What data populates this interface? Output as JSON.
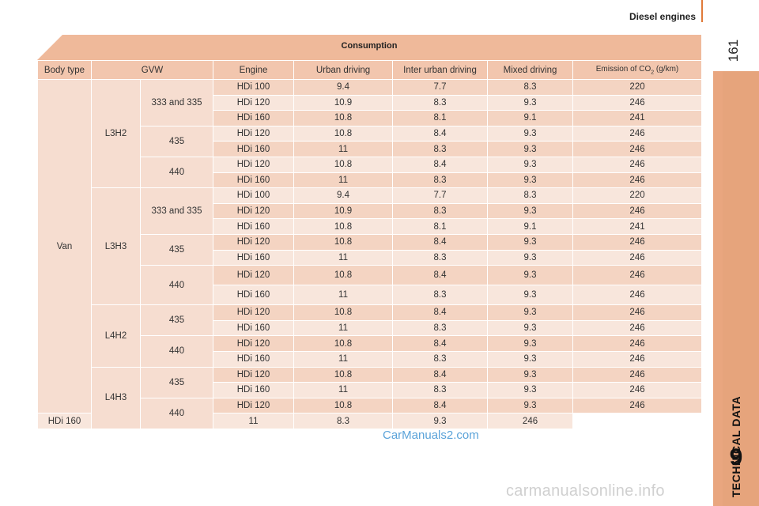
{
  "header": {
    "section_title": "Diesel engines",
    "page_number": "161"
  },
  "side_tab": {
    "chapter_title": "TECHNICAL DATA",
    "chapter_number": "9"
  },
  "table": {
    "caption": "Consumption",
    "columns": [
      "Body type",
      "GVW",
      "Engine",
      "Urban driving",
      "Inter urban driving",
      "Mixed driving"
    ],
    "co2_header": {
      "prefix": "Emission of CO",
      "subscript": "2",
      "suffix": " (g/km)"
    },
    "body_type": "Van",
    "groups": [
      {
        "name": "L3H2",
        "gvws": [
          {
            "gvw": "333 and 335",
            "rows": [
              {
                "engine": "HDi 100",
                "urban": "9.4",
                "inter_urban": "7.7",
                "mixed": "8.3",
                "co2": "220"
              },
              {
                "engine": "HDi 120",
                "urban": "10.9",
                "inter_urban": "8.3",
                "mixed": "9.3",
                "co2": "246"
              },
              {
                "engine": "HDi 160",
                "urban": "10.8",
                "inter_urban": "8.1",
                "mixed": "9.1",
                "co2": "241"
              }
            ]
          },
          {
            "gvw": "435",
            "rows": [
              {
                "engine": "HDi 120",
                "urban": "10.8",
                "inter_urban": "8.4",
                "mixed": "9.3",
                "co2": "246"
              },
              {
                "engine": "HDi 160",
                "urban": "11",
                "inter_urban": "8.3",
                "mixed": "9.3",
                "co2": "246"
              }
            ]
          },
          {
            "gvw": "440",
            "rows": [
              {
                "engine": "HDi 120",
                "urban": "10.8",
                "inter_urban": "8.4",
                "mixed": "9.3",
                "co2": "246"
              },
              {
                "engine": "HDi 160",
                "urban": "11",
                "inter_urban": "8.3",
                "mixed": "9.3",
                "co2": "246"
              }
            ]
          }
        ]
      },
      {
        "name": "L3H3",
        "gvws": [
          {
            "gvw": "333 and 335",
            "rows": [
              {
                "engine": "HDi 100",
                "urban": "9.4",
                "inter_urban": "7.7",
                "mixed": "8.3",
                "co2": "220"
              },
              {
                "engine": "HDi 120",
                "urban": "10.9",
                "inter_urban": "8.3",
                "mixed": "9.3",
                "co2": "246"
              },
              {
                "engine": "HDi 160",
                "urban": "10.8",
                "inter_urban": "8.1",
                "mixed": "9.1",
                "co2": "241"
              }
            ]
          },
          {
            "gvw": "435",
            "rows": [
              {
                "engine": "HDi 120",
                "urban": "10.8",
                "inter_urban": "8.4",
                "mixed": "9.3",
                "co2": "246"
              },
              {
                "engine": "HDi 160",
                "urban": "11",
                "inter_urban": "8.3",
                "mixed": "9.3",
                "co2": "246"
              }
            ]
          },
          {
            "gvw": "440",
            "rows": [
              {
                "engine": "HDi 120",
                "urban": "10.8",
                "inter_urban": "8.4",
                "mixed": "9.3",
                "co2": "246"
              },
              {
                "engine": "HDi 160",
                "urban": "11",
                "inter_urban": "8.3",
                "mixed": "9.3",
                "co2": "246"
              }
            ]
          }
        ]
      },
      {
        "name": "L4H2",
        "gvws": [
          {
            "gvw": "435",
            "rows": [
              {
                "engine": "HDi 120",
                "urban": "10.8",
                "inter_urban": "8.4",
                "mixed": "9.3",
                "co2": "246"
              },
              {
                "engine": "HDi 160",
                "urban": "11",
                "inter_urban": "8.3",
                "mixed": "9.3",
                "co2": "246"
              }
            ]
          },
          {
            "gvw": "440",
            "rows": [
              {
                "engine": "HDi 120",
                "urban": "10.8",
                "inter_urban": "8.4",
                "mixed": "9.3",
                "co2": "246"
              },
              {
                "engine": "HDi 160",
                "urban": "11",
                "inter_urban": "8.3",
                "mixed": "9.3",
                "co2": "246"
              }
            ]
          }
        ]
      },
      {
        "name": "L4H3",
        "gvws": [
          {
            "gvw": "435",
            "rows": [
              {
                "engine": "HDi 120",
                "urban": "10.8",
                "inter_urban": "8.4",
                "mixed": "9.3",
                "co2": "246"
              },
              {
                "engine": "HDi 160",
                "urban": "11",
                "inter_urban": "8.3",
                "mixed": "9.3",
                "co2": "246"
              }
            ]
          },
          {
            "gvw": "440",
            "rows": [
              {
                "engine": "HDi 120",
                "urban": "10.8",
                "inter_urban": "8.4",
                "mixed": "9.3",
                "co2": "246"
              },
              {
                "engine": "HDi 160",
                "urban": "11",
                "inter_urban": "8.3",
                "mixed": "9.3",
                "co2": "246"
              }
            ]
          }
        ]
      }
    ]
  },
  "watermarks": {
    "mid": "CarManuals2.com",
    "bottom": "carmanualsonline.info"
  },
  "colors": {
    "accent": "#e07a3a",
    "tab": "#e9a67f",
    "caption": "#efb99a",
    "header_row": "#f2c6ae",
    "row_dark": "#f4d4c2",
    "row_light": "#f8e6dc",
    "watermark_blue": "#5ba3d9"
  }
}
